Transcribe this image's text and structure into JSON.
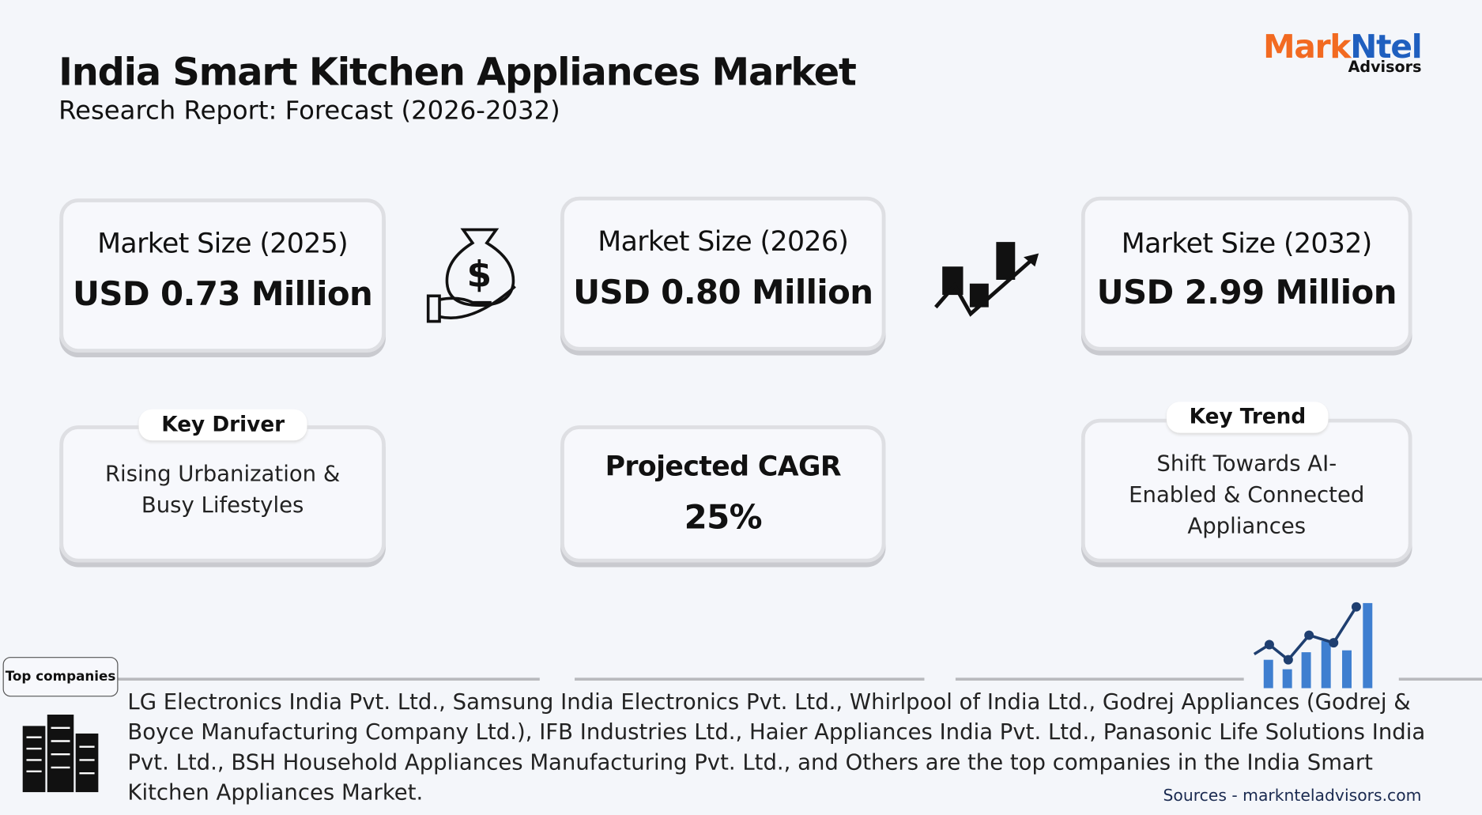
{
  "header": {
    "title": "India Smart Kitchen Appliances Market",
    "subtitle": "Research Report: Forecast (2026-2032)"
  },
  "logo": {
    "brand_a": "Mark",
    "brand_b": "Ntel",
    "sub": "Advisors"
  },
  "market_size": [
    {
      "label": "Market Size (2025)",
      "value": "USD 0.73 Million"
    },
    {
      "label": "Market Size (2026)",
      "value": "USD 0.80 Million"
    },
    {
      "label": "Market Size (2032)",
      "value": "USD 2.99 Million"
    }
  ],
  "key_driver": {
    "label": "Key Driver",
    "text": "Rising Urbanization & Busy Lifestyles"
  },
  "cagr": {
    "label": "Projected CAGR",
    "value": "25%"
  },
  "key_trend": {
    "label": "Key Trend",
    "text": "Shift Towards AI-Enabled & Connected Appliances"
  },
  "top_companies": {
    "label": "Top companies",
    "text": "LG Electronics India Pvt. Ltd., Samsung India Electronics Pvt. Ltd., Whirlpool of India Ltd., Godrej Appliances (Godrej & Boyce Manufacturing Company Ltd.), IFB Industries Ltd., Haier Appliances India Pvt. Ltd., Panasonic Life Solutions India Pvt. Ltd., BSH Household Appliances Manufacturing Pvt. Ltd., and Others are the top companies in the India Smart Kitchen Appliances Market."
  },
  "source": "Sources - marknteladvisors.com"
}
